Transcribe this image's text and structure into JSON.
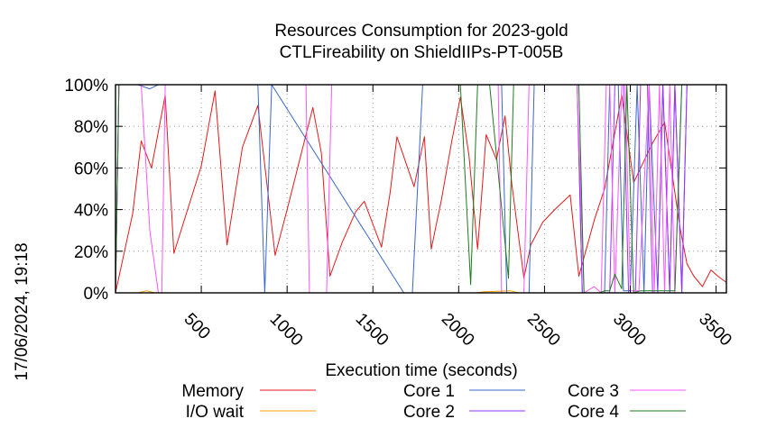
{
  "chart_data": {
    "type": "line",
    "title": [
      "Resources Consumption for 2023-gold",
      "CTLFireability on ShieldIIPs-PT-005B"
    ],
    "xlabel": "Execution time (seconds)",
    "ylabel": "",
    "xlim": [
      0,
      3560
    ],
    "ylim": [
      0,
      100
    ],
    "xticks": [
      500,
      1000,
      1500,
      2000,
      2500,
      3000,
      3500
    ],
    "xtick_labels": [
      "500",
      "1000",
      "1500",
      "2000",
      "2500",
      "3000",
      "3500"
    ],
    "yticks": [
      0,
      20,
      40,
      60,
      80,
      100
    ],
    "ytick_labels": [
      "0%",
      "20%",
      "40%",
      "60%",
      "80%",
      "100%"
    ],
    "grid": true,
    "legend_position": "bottom",
    "timestamp": "17/06/2024, 19:18",
    "series": [
      {
        "name": "Memory",
        "color": "#e41a1c",
        "x": [
          0,
          100,
          150,
          210,
          290,
          340,
          420,
          500,
          580,
          650,
          740,
          830,
          930,
          1000,
          1150,
          1200,
          1250,
          1320,
          1400,
          1450,
          1550,
          1600,
          1640,
          1740,
          1800,
          1840,
          1900,
          1960,
          2010,
          2060,
          2110,
          2160,
          2220,
          2270,
          2310,
          2380,
          2420,
          2490,
          2560,
          2650,
          2700,
          2790,
          2850,
          2950,
          3020,
          3060,
          3130,
          3200,
          3290,
          3330,
          3370,
          3420,
          3470,
          3510,
          3560
        ],
        "values": [
          0,
          38,
          73,
          60,
          95,
          19,
          40,
          61,
          97,
          23,
          70,
          90,
          18,
          40,
          89,
          67,
          8,
          24,
          39,
          44,
          22,
          48,
          75,
          51,
          75,
          21,
          45,
          73,
          94,
          66,
          21,
          76,
          64,
          85,
          52,
          7,
          23,
          34,
          40,
          47,
          8,
          35,
          50,
          95,
          53,
          60,
          72,
          82,
          31,
          14,
          8,
          3,
          11,
          8,
          5
        ]
      },
      {
        "name": "I/O wait",
        "color": "#ff9e00",
        "x": [
          0,
          130,
          180,
          230,
          900,
          1000,
          2100,
          2150,
          2300,
          2350,
          3560
        ],
        "values": [
          0,
          0,
          1,
          0,
          0,
          0,
          0,
          0.5,
          1,
          0,
          0
        ]
      },
      {
        "name": "Core 1",
        "color": "#3a66cc",
        "x": [
          0,
          20,
          130,
          200,
          250,
          830,
          870,
          910,
          1680,
          1730,
          1790,
          1840,
          2250,
          2280,
          2410,
          2440,
          2690,
          2720,
          2850,
          2880,
          2930,
          2960,
          3000,
          3040,
          3080,
          3110,
          3160,
          3190,
          3230,
          3260,
          3300,
          3330,
          3560
        ],
        "values": [
          0,
          100,
          100,
          98,
          100,
          100,
          0,
          100,
          0,
          0,
          100,
          100,
          100,
          0,
          0,
          100,
          100,
          0,
          0,
          100,
          100,
          1,
          1,
          100,
          0,
          100,
          0,
          100,
          0,
          100,
          0,
          100,
          100
        ]
      },
      {
        "name": "Core 2",
        "color": "#9b30ff",
        "x": [
          0,
          20,
          1200,
          1230,
          2010,
          2040,
          2690,
          2720,
          2880,
          2910,
          2960,
          2990,
          3030,
          3060,
          3100,
          3130,
          3160,
          3190,
          3230,
          3260,
          3300,
          3330,
          3560
        ],
        "values": [
          0,
          100,
          100,
          100,
          100,
          100,
          100,
          0,
          0,
          100,
          100,
          0,
          0,
          100,
          100,
          0,
          0,
          100,
          0,
          100,
          0,
          100,
          100
        ]
      },
      {
        "name": "Core 3",
        "color": "#ff55ff",
        "x": [
          0,
          20,
          150,
          200,
          250,
          270,
          290,
          1110,
          1130,
          1230,
          1260,
          2230,
          2250,
          2380,
          2410,
          2690,
          2730,
          2790,
          2830,
          2860,
          2880,
          2910,
          2950,
          2970,
          3000,
          3050,
          3110,
          3140,
          3170,
          3200,
          3230,
          3260,
          3300,
          3330,
          3560
        ],
        "values": [
          0,
          100,
          100,
          30,
          0,
          0,
          100,
          100,
          0,
          0,
          100,
          100,
          0,
          0,
          100,
          100,
          0,
          3,
          0,
          100,
          100,
          0,
          100,
          100,
          1,
          1,
          100,
          0,
          100,
          0,
          100,
          0,
          100,
          100,
          100
        ]
      },
      {
        "name": "Core 4",
        "color": "#1f7a1f",
        "x": [
          0,
          20,
          2010,
          2040,
          2070,
          2110,
          2150,
          2180,
          2290,
          2320,
          2380,
          2410,
          2700,
          2730,
          2820,
          2850,
          2880,
          2910,
          2950,
          2980,
          3020,
          3060,
          3110,
          3160,
          3200,
          3260,
          3300,
          3330,
          3560
        ],
        "values": [
          0,
          100,
          100,
          52,
          4,
          100,
          100,
          100,
          7,
          100,
          100,
          100,
          100,
          0,
          0,
          1,
          1,
          9,
          2,
          100,
          0,
          1,
          1,
          1,
          1,
          1,
          100,
          100,
          100
        ]
      }
    ]
  }
}
